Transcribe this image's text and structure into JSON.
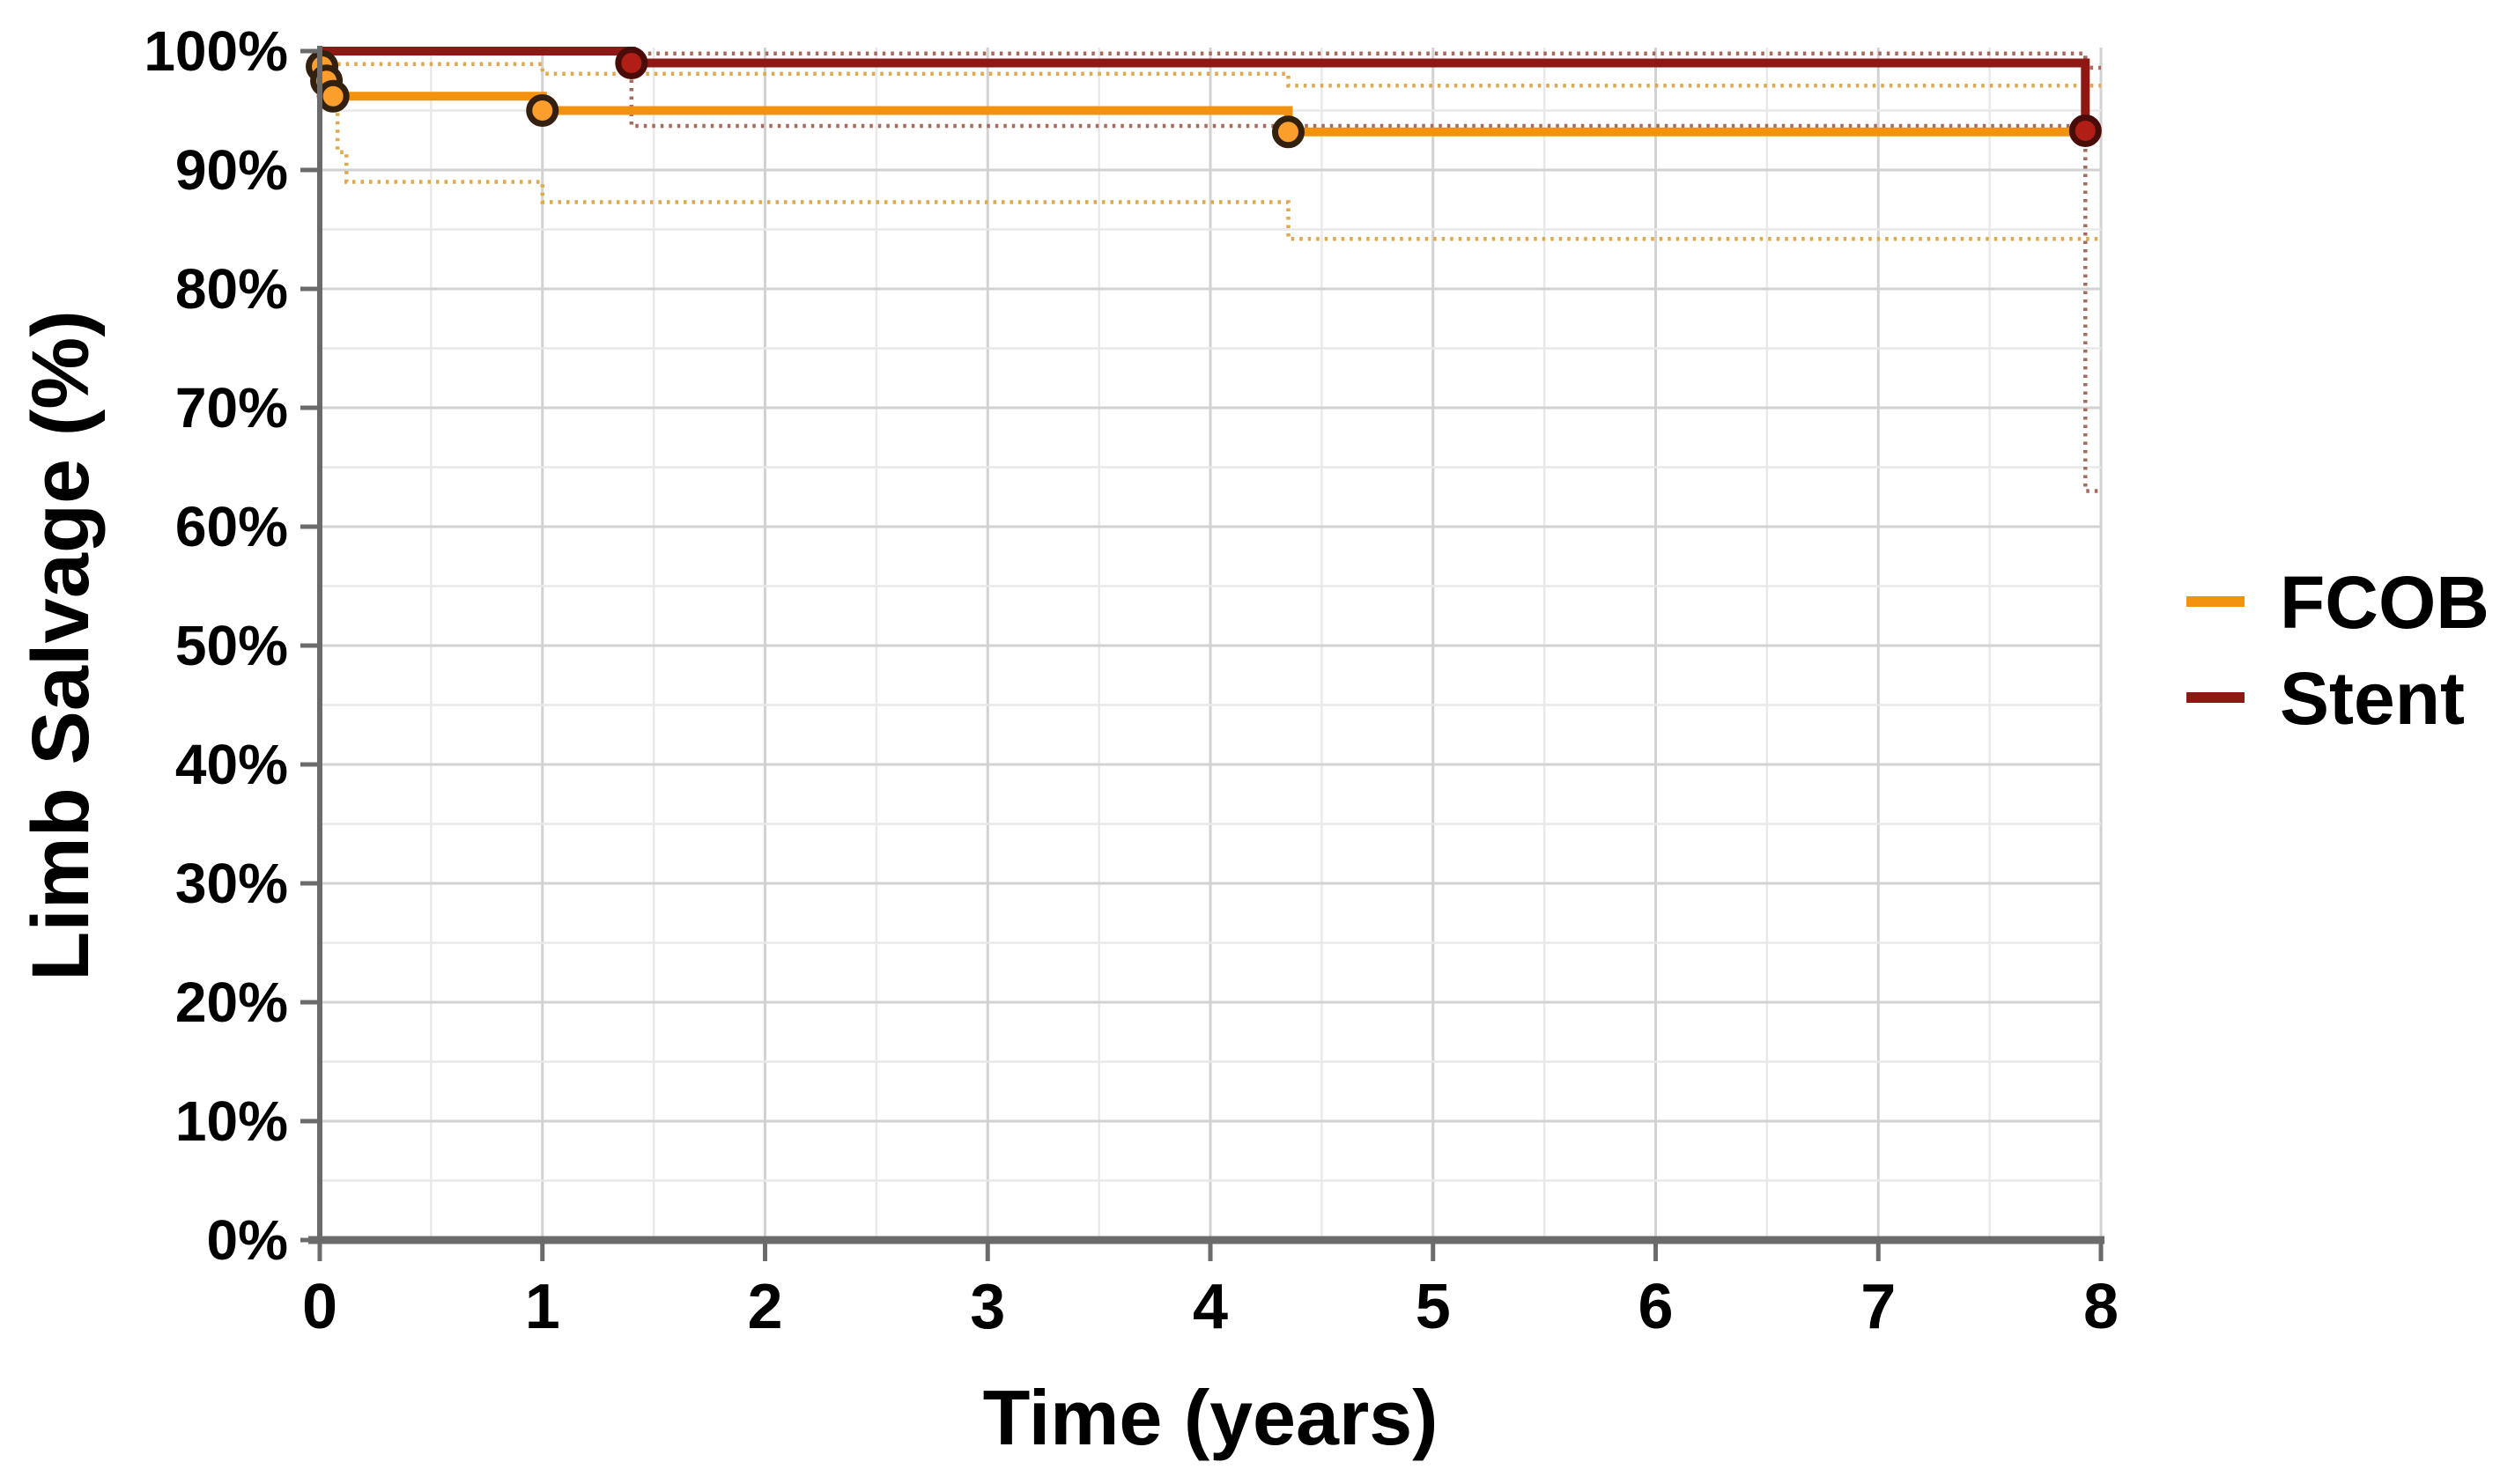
{
  "chart_data": {
    "type": "line",
    "chart_kind": "kaplan_meier_step",
    "title": "",
    "xlabel": "Time (years)",
    "ylabel": "Limb Salvage (%)",
    "xlim": [
      0,
      8
    ],
    "ylim": [
      0,
      100
    ],
    "x_ticks": [
      {
        "v": 0,
        "label": "0"
      },
      {
        "v": 1,
        "label": "1"
      },
      {
        "v": 2,
        "label": "2"
      },
      {
        "v": 3,
        "label": "3"
      },
      {
        "v": 4,
        "label": "4"
      },
      {
        "v": 5,
        "label": "5"
      },
      {
        "v": 6,
        "label": "6"
      },
      {
        "v": 7,
        "label": "7"
      },
      {
        "v": 8,
        "label": "8"
      }
    ],
    "y_ticks": [
      {
        "v": 0,
        "label": "0%"
      },
      {
        "v": 10,
        "label": "10%"
      },
      {
        "v": 20,
        "label": "20%"
      },
      {
        "v": 30,
        "label": "30%"
      },
      {
        "v": 40,
        "label": "40%"
      },
      {
        "v": 50,
        "label": "50%"
      },
      {
        "v": 60,
        "label": "60%"
      },
      {
        "v": 70,
        "label": "70%"
      },
      {
        "v": 80,
        "label": "80%"
      },
      {
        "v": 90,
        "label": "90%"
      },
      {
        "v": 100,
        "label": "100%"
      }
    ],
    "grid": {
      "x_minor_step": 0.5,
      "x_major_step": 1,
      "y_minor_step": 5,
      "y_major_step": 10,
      "minor_color": "#e9e9e9",
      "major_color": "#d2d2d2"
    },
    "axis_color": "#6b6b6b",
    "tick_label_color": "#000000",
    "legend": {
      "position": "right-outside",
      "entries": [
        {
          "series": "FCOB",
          "label": "FCOB"
        },
        {
          "series": "Stent",
          "label": "Stent"
        }
      ]
    },
    "series": [
      {
        "name": "FCOB",
        "color": "#f2920f",
        "marker_fill": "#fb9e2c",
        "marker_stroke": "#33200e",
        "ci_color": "#dfa94f",
        "line": [
          [
            0,
            100
          ],
          [
            0.01,
            100
          ],
          [
            0.01,
            98.7
          ],
          [
            0.03,
            98.7
          ],
          [
            0.03,
            97.5
          ],
          [
            0.06,
            97.5
          ],
          [
            0.06,
            96.2
          ],
          [
            1,
            96.2
          ],
          [
            1,
            95
          ],
          [
            4.35,
            95
          ],
          [
            4.35,
            93.2
          ],
          [
            8,
            93.2
          ]
        ],
        "markers": [
          [
            0.01,
            98.7
          ],
          [
            0.03,
            97.5
          ],
          [
            0.06,
            96.2
          ],
          [
            1,
            95
          ],
          [
            4.35,
            93.2
          ]
        ],
        "ci_upper": [
          [
            0.08,
            98.9
          ],
          [
            1,
            98.9
          ],
          [
            1,
            98.1
          ],
          [
            4.35,
            98.1
          ],
          [
            4.35,
            97.1
          ],
          [
            8,
            97.1
          ]
        ],
        "ci_lower": [
          [
            0.08,
            96.2
          ],
          [
            0.08,
            91.5
          ],
          [
            0.12,
            91.5
          ],
          [
            0.12,
            89
          ],
          [
            1,
            89
          ],
          [
            1,
            87.3
          ],
          [
            4.35,
            87.3
          ],
          [
            4.35,
            84.2
          ],
          [
            8,
            84.2
          ]
        ]
      },
      {
        "name": "Stent",
        "color": "#8e1914",
        "marker_fill": "#b01e15",
        "marker_stroke": "#4a0c08",
        "ci_color": "#a66a5e",
        "line": [
          [
            0,
            100
          ],
          [
            1.4,
            100
          ],
          [
            1.4,
            99
          ],
          [
            7.93,
            99
          ],
          [
            7.93,
            93.3
          ],
          [
            8,
            93.3
          ]
        ],
        "markers": [
          [
            1.4,
            99
          ],
          [
            7.93,
            93.3
          ]
        ],
        "ci_upper": [
          [
            1.4,
            99.8
          ],
          [
            7.93,
            99.8
          ],
          [
            7.93,
            98.6
          ],
          [
            8,
            98.6
          ]
        ],
        "ci_lower": [
          [
            1.4,
            99
          ],
          [
            1.4,
            93.7
          ],
          [
            7.93,
            93.7
          ],
          [
            7.93,
            63
          ],
          [
            8,
            63
          ]
        ]
      }
    ]
  }
}
